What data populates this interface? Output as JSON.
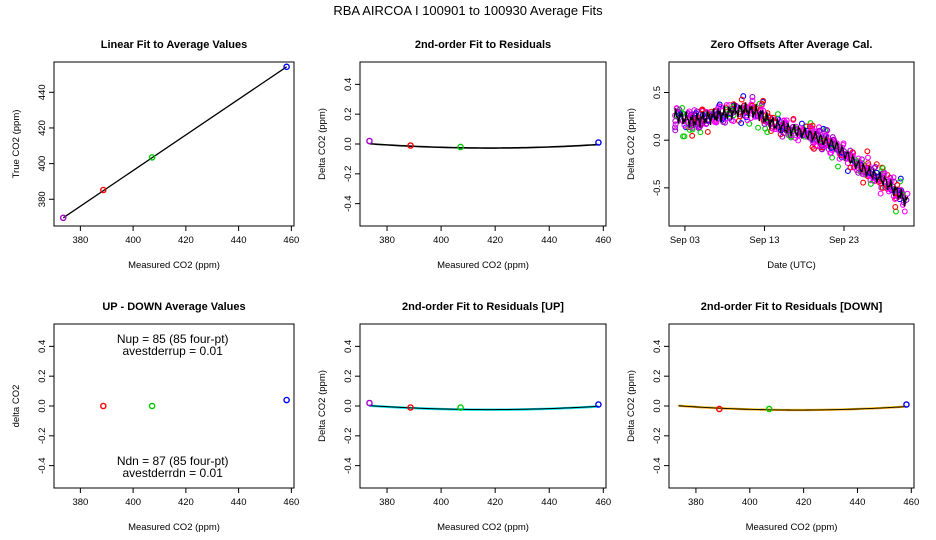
{
  "page_title": "RBA   AIRCOA I   100901 to 100930   Average Fits",
  "colors": {
    "blue": "#0000ff",
    "red": "#ff0000",
    "green": "#00cc00",
    "purple": "#a000c8",
    "magenta": "#ff00ff",
    "cyan": "#00e5ee",
    "orange": "#ff9900",
    "yellow": "#e8e800",
    "black": "#000000"
  },
  "chart_data": [
    {
      "id": "p1",
      "type": "scatter",
      "title": "Linear Fit to Average Values",
      "xlabel": "Measured CO2 (ppm)",
      "ylabel": "True CO2 (ppm)",
      "xlim": [
        370,
        461
      ],
      "ylim": [
        365,
        457
      ],
      "xticks": [
        380,
        400,
        420,
        440,
        460
      ],
      "xtick_labels": [
        "380",
        "400",
        "420",
        "440",
        "460"
      ],
      "yticks": [
        380,
        400,
        420,
        440
      ],
      "ytick_labels": [
        "380",
        "400",
        "420",
        "440"
      ],
      "points": [
        {
          "x": 373.5,
          "y": 369.6,
          "color": "purple"
        },
        {
          "x": 388.7,
          "y": 385.2,
          "color": "red"
        },
        {
          "x": 407.2,
          "y": 403.5,
          "color": "green"
        },
        {
          "x": 458.2,
          "y": 454.3,
          "color": "blue"
        }
      ],
      "lines": [
        {
          "color": "black",
          "x": [
            373.5,
            458.2
          ],
          "y": [
            369.6,
            454.3
          ]
        }
      ]
    },
    {
      "id": "p2",
      "type": "scatter",
      "title": "2nd-order Fit to Residuals",
      "xlabel": "Measured CO2 (ppm)",
      "ylabel": "Delta CO2 (ppm)",
      "xlim": [
        370,
        461
      ],
      "ylim": [
        -0.55,
        0.55
      ],
      "xticks": [
        380,
        400,
        420,
        440,
        460
      ],
      "xtick_labels": [
        "380",
        "400",
        "420",
        "440",
        "460"
      ],
      "yticks": [
        -0.4,
        -0.2,
        0.0,
        0.2,
        0.4
      ],
      "ytick_labels": [
        "-0.4",
        "-0.2",
        "0.0",
        "0.2",
        "0.4"
      ],
      "points": [
        {
          "x": 373.5,
          "y": 0.02,
          "color": "purple"
        },
        {
          "x": 388.7,
          "y": -0.01,
          "color": "red"
        },
        {
          "x": 407.2,
          "y": -0.02,
          "color": "green"
        },
        {
          "x": 458.2,
          "y": 0.01,
          "color": "blue"
        }
      ],
      "curves": [
        {
          "color": "black",
          "width": 1.6,
          "x0": 373.5,
          "x1": 458.2,
          "a": 1.45e-05,
          "c": 418,
          "d": -0.027
        }
      ]
    },
    {
      "id": "p3",
      "type": "scatter",
      "title": "Zero Offsets After Average Cal.",
      "xlabel": "Date (UTC)",
      "ylabel": "Delta CO2 (ppm)",
      "xlim": [
        0,
        30.8
      ],
      "ylim": [
        -0.9,
        0.82
      ],
      "xticks": [
        2,
        12,
        22
      ],
      "xtick_labels": [
        "Sep 03",
        "Sep 13",
        "Sep 23"
      ],
      "yticks": [
        -0.5,
        0.0,
        0.5
      ],
      "ytick_labels": [
        "-0.5",
        "0.0",
        "0.5"
      ],
      "time_series": {
        "start": 0.7,
        "end": 30.0,
        "trend_x": [
          0.7,
          3,
          6,
          9,
          11,
          13,
          15,
          18,
          21,
          24,
          27,
          30
        ],
        "trend_y": [
          0.26,
          0.2,
          0.26,
          0.32,
          0.3,
          0.18,
          0.12,
          0.05,
          -0.06,
          -0.28,
          -0.42,
          -0.65
        ],
        "markers": [
          "magenta",
          "purple",
          "green",
          "red",
          "blue"
        ]
      }
    },
    {
      "id": "p4",
      "type": "scatter",
      "title": "UP - DOWN Average Values",
      "xlabel": "Measured CO2 (ppm)",
      "ylabel": "delta CO2",
      "xlim": [
        370,
        461
      ],
      "ylim": [
        -0.55,
        0.55
      ],
      "xticks": [
        380,
        400,
        420,
        440,
        460
      ],
      "xtick_labels": [
        "380",
        "400",
        "420",
        "440",
        "460"
      ],
      "yticks": [
        -0.4,
        -0.2,
        0.0,
        0.2,
        0.4
      ],
      "ytick_labels": [
        "-0.4",
        "-0.2",
        "0.0",
        "0.2",
        "0.4"
      ],
      "points": [
        {
          "x": 388.7,
          "y": 0.0,
          "color": "red"
        },
        {
          "x": 407.2,
          "y": 0.0,
          "color": "green"
        },
        {
          "x": 458.2,
          "y": 0.04,
          "color": "blue"
        }
      ],
      "annotations": [
        {
          "text": "Nup = 85 (85 four-pt)",
          "x": 415,
          "y": 0.45
        },
        {
          "text": "avestderrup =  0.01",
          "x": 415,
          "y": 0.37
        },
        {
          "text": "Ndn = 87 (85 four-pt)",
          "x": 415,
          "y": -0.37
        },
        {
          "text": "avestderrdn =  0.01",
          "x": 415,
          "y": -0.45
        }
      ]
    },
    {
      "id": "p5",
      "type": "scatter",
      "title": "2nd-order Fit to Residuals [UP]",
      "xlabel": "Measured CO2 (ppm)",
      "ylabel": "Delta CO2 (ppm)",
      "xlim": [
        370,
        461
      ],
      "ylim": [
        -0.55,
        0.55
      ],
      "xticks": [
        380,
        400,
        420,
        440,
        460
      ],
      "xtick_labels": [
        "380",
        "400",
        "420",
        "440",
        "460"
      ],
      "yticks": [
        -0.4,
        -0.2,
        0.0,
        0.2,
        0.4
      ],
      "ytick_labels": [
        "-0.4",
        "-0.2",
        "0.0",
        "0.2",
        "0.4"
      ],
      "points": [
        {
          "x": 373.5,
          "y": 0.02,
          "color": "purple"
        },
        {
          "x": 388.7,
          "y": -0.01,
          "color": "red"
        },
        {
          "x": 407.2,
          "y": -0.01,
          "color": "green"
        },
        {
          "x": 458.2,
          "y": 0.01,
          "color": "blue"
        }
      ],
      "curves": [
        {
          "color": "cyan",
          "width": 2.4,
          "x0": 373.5,
          "x1": 458.2,
          "a": 1.35e-05,
          "c": 418,
          "d": -0.025
        },
        {
          "color": "black",
          "width": 1.0,
          "x0": 373.5,
          "x1": 458.2,
          "a": 1.35e-05,
          "c": 418,
          "d": -0.024
        }
      ]
    },
    {
      "id": "p6",
      "type": "scatter",
      "title": "2nd-order Fit to Residuals [DOWN]",
      "xlabel": "Measured CO2 (ppm)",
      "ylabel": "Delta CO2 (ppm)",
      "xlim": [
        370,
        461
      ],
      "ylim": [
        -0.55,
        0.55
      ],
      "xticks": [
        380,
        400,
        420,
        440,
        460
      ],
      "xtick_labels": [
        "380",
        "400",
        "420",
        "440",
        "460"
      ],
      "yticks": [
        -0.4,
        -0.2,
        0.0,
        0.2,
        0.4
      ],
      "ytick_labels": [
        "-0.4",
        "-0.2",
        "0.0",
        "0.2",
        "0.4"
      ],
      "points": [
        {
          "x": 388.7,
          "y": -0.02,
          "color": "red"
        },
        {
          "x": 407.2,
          "y": -0.02,
          "color": "green"
        },
        {
          "x": 458.2,
          "y": 0.01,
          "color": "blue"
        }
      ],
      "curves": [
        {
          "color": "orange",
          "width": 2.2,
          "x0": 373.5,
          "x1": 458.2,
          "a": 1.45e-05,
          "c": 418,
          "d": -0.027
        },
        {
          "color": "yellow",
          "width": 1.2,
          "x0": 373.5,
          "x1": 458.2,
          "a": 1.45e-05,
          "c": 418,
          "d": -0.026
        },
        {
          "color": "black",
          "width": 0.9,
          "x0": 373.5,
          "x1": 458.2,
          "a": 1.45e-05,
          "c": 418,
          "d": -0.027
        }
      ]
    }
  ]
}
